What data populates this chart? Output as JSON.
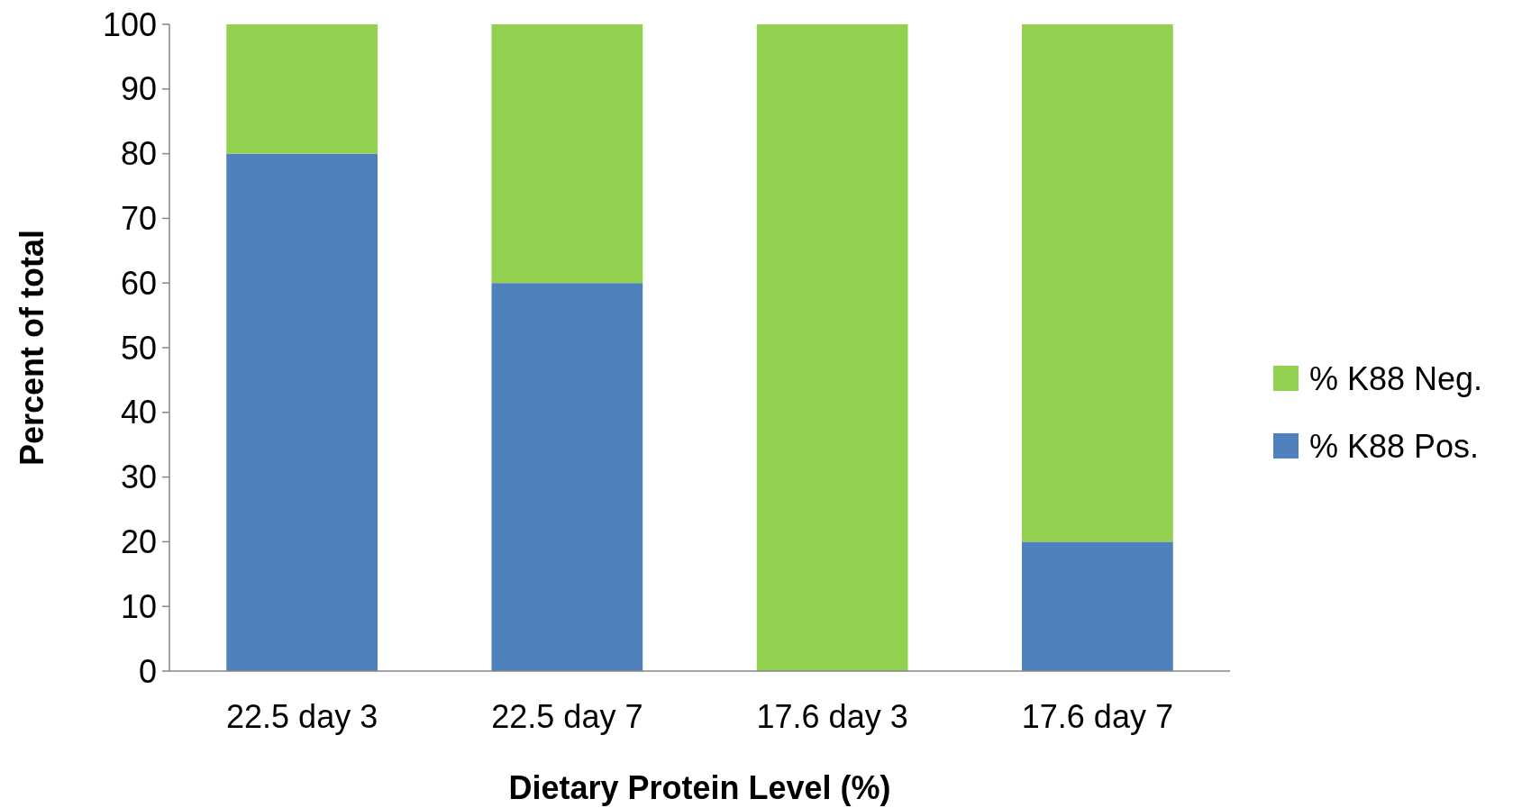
{
  "chart_data": {
    "type": "bar",
    "stacked": true,
    "xlabel": "Dietary Protein Level (%)",
    "ylabel": "Percent of total",
    "categories": [
      "22.5 day 3",
      "22.5 day 7",
      "17.6 day 3",
      "17.6 day 7"
    ],
    "series": [
      {
        "name": "% K88 Pos.",
        "color": "#4f81bd",
        "values": [
          80,
          60,
          0,
          20
        ]
      },
      {
        "name": "% K88 Neg.",
        "color": "#92d050",
        "values": [
          20,
          40,
          100,
          80
        ]
      }
    ],
    "ylim": [
      0,
      100
    ],
    "yticks": [
      0,
      10,
      20,
      30,
      40,
      50,
      60,
      70,
      80,
      90,
      100
    ],
    "grid": false,
    "legend": "right"
  }
}
